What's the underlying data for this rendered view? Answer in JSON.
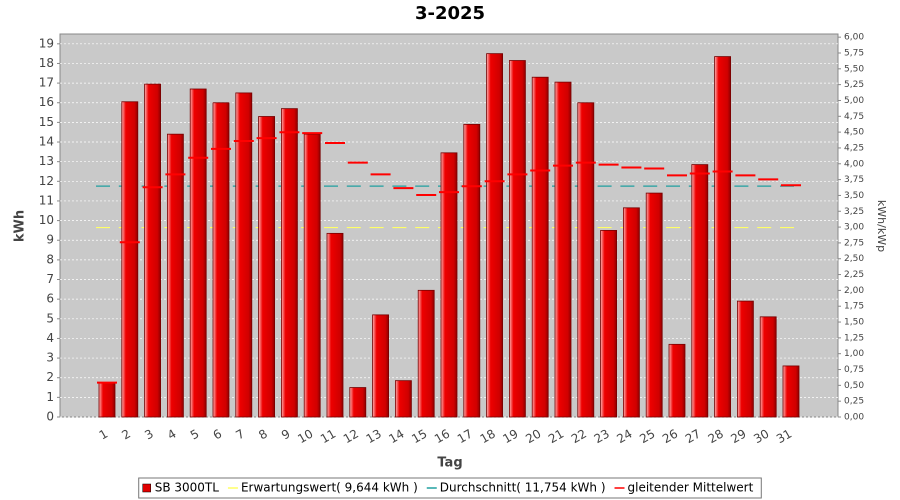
{
  "chart_data": {
    "type": "bar",
    "title": "3-2025",
    "x_label": "Tag",
    "y_label": "kWh",
    "y2_label": "kWh/kWp",
    "categories": [
      "1",
      "2",
      "3",
      "4",
      "5",
      "6",
      "7",
      "8",
      "9",
      "10",
      "11",
      "12",
      "13",
      "14",
      "15",
      "16",
      "17",
      "18",
      "19",
      "20",
      "21",
      "22",
      "23",
      "24",
      "25",
      "26",
      "27",
      "28",
      "29",
      "30",
      "31"
    ],
    "series": [
      {
        "name": "SB 3000TL",
        "color": "#e00000",
        "values": [
          1.75,
          16.05,
          16.95,
          14.4,
          16.7,
          16.0,
          16.5,
          15.3,
          15.7,
          14.4,
          9.35,
          1.5,
          5.2,
          1.85,
          6.45,
          13.45,
          14.9,
          18.5,
          18.15,
          17.3,
          17.05,
          16.0,
          9.5,
          10.65,
          11.4,
          3.7,
          12.85,
          18.35,
          5.9,
          5.1,
          2.6
        ]
      },
      {
        "name": "gleitender Mittelwert",
        "color": "#ff0000",
        "values": [
          1.75,
          8.9,
          11.7,
          12.35,
          13.2,
          13.65,
          14.05,
          14.2,
          14.5,
          14.45,
          13.95,
          12.95,
          12.35,
          11.65,
          11.3,
          11.45,
          11.75,
          12.0,
          12.35,
          12.55,
          12.8,
          12.95,
          12.85,
          12.7,
          12.65,
          12.3,
          12.4,
          12.5,
          12.3,
          12.1,
          11.8
        ]
      }
    ],
    "reference_lines": [
      {
        "name": "Erwartungswert( 9,644 kWh )",
        "color": "#ffff66",
        "value": 9.644
      },
      {
        "name": "Durchschnitt( 11,754 kWh )",
        "color": "#20a0a0",
        "value": 11.754
      }
    ],
    "ylim": [
      0,
      19.5
    ],
    "yticks": [
      0,
      1,
      2,
      3,
      4,
      5,
      6,
      7,
      8,
      9,
      10,
      11,
      12,
      13,
      14,
      15,
      16,
      17,
      18,
      19
    ],
    "y2lim": [
      0,
      6.05
    ],
    "y2ticks": [
      {
        "value": 0,
        "label": "0,00"
      },
      {
        "value": 0.25,
        "label": "0,25"
      },
      {
        "value": 0.5,
        "label": "0,50"
      },
      {
        "value": 0.75,
        "label": "0,75"
      },
      {
        "value": 1,
        "label": "1,00"
      },
      {
        "value": 1.25,
        "label": "1,25"
      },
      {
        "value": 1.5,
        "label": "1,50"
      },
      {
        "value": 1.75,
        "label": "1,75"
      },
      {
        "value": 2,
        "label": "2,00"
      },
      {
        "value": 2.25,
        "label": "2,25"
      },
      {
        "value": 2.5,
        "label": "2,50"
      },
      {
        "value": 2.75,
        "label": "2,75"
      },
      {
        "value": 3,
        "label": "3,00"
      },
      {
        "value": 3.25,
        "label": "3,25"
      },
      {
        "value": 3.5,
        "label": "3,50"
      },
      {
        "value": 3.75,
        "label": "3,75"
      },
      {
        "value": 4,
        "label": "4,00"
      },
      {
        "value": 4.25,
        "label": "4,25"
      },
      {
        "value": 4.5,
        "label": "4,50"
      },
      {
        "value": 4.75,
        "label": "4,75"
      },
      {
        "value": 5,
        "label": "5,00"
      },
      {
        "value": 5.25,
        "label": "5,25"
      },
      {
        "value": 5.5,
        "label": "5,50"
      },
      {
        "value": 5.75,
        "label": "5,75"
      },
      {
        "value": 6,
        "label": "6,00"
      }
    ],
    "grid": true,
    "legend": "bottom"
  }
}
